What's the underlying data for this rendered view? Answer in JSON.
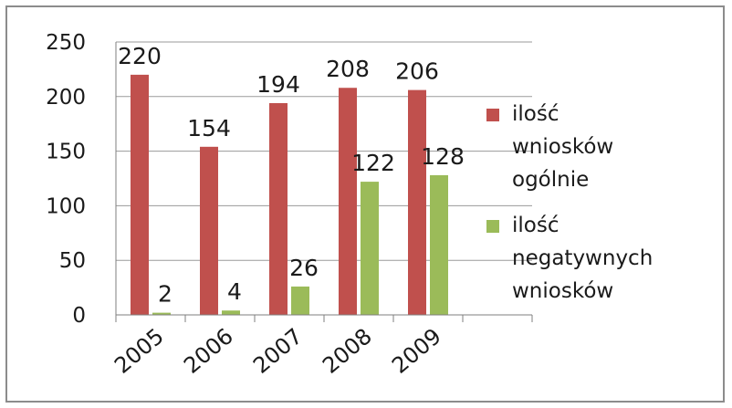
{
  "chart_data": {
    "type": "bar",
    "categories": [
      "2005",
      "2006",
      "2007",
      "2008",
      "2009"
    ],
    "series": [
      {
        "name": "ilość wniosków ogólnie",
        "values": [
          220,
          154,
          194,
          208,
          206
        ],
        "color": "#c0504d"
      },
      {
        "name": "ilość negatywnych wniosków",
        "values": [
          2,
          4,
          26,
          122,
          128
        ],
        "color": "#9bbb59"
      }
    ],
    "ylim": [
      0,
      250
    ],
    "yticks": [
      "0",
      "50",
      "100",
      "150",
      "200",
      "250"
    ],
    "grid": true,
    "legend_position": "right",
    "data_labels": true
  },
  "legend": {
    "items": [
      {
        "lines": [
          "ilość",
          "wniosków",
          "ogólnie"
        ]
      },
      {
        "lines": [
          "ilość",
          "negatywnych",
          "wniosków"
        ]
      }
    ]
  }
}
